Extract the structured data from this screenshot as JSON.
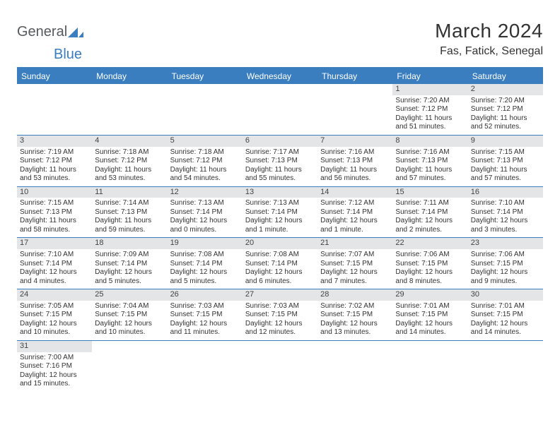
{
  "logo": {
    "text1": "General",
    "text2": "Blue",
    "shape_color": "#3a7ebf"
  },
  "header": {
    "month_title": "March 2024",
    "location": "Fas, Fatick, Senegal"
  },
  "styling": {
    "accent_color": "#3a7ebf",
    "header_bg": "#3a7ebf",
    "header_text_color": "#ffffff",
    "daynum_bg": "#e4e5e6",
    "body_text_color": "#333333",
    "page_bg": "#ffffff",
    "month_title_fontsize": 28,
    "location_fontsize": 16,
    "weekday_fontsize": 12,
    "detail_fontsize": 10,
    "columns": 7
  },
  "weekdays": [
    "Sunday",
    "Monday",
    "Tuesday",
    "Wednesday",
    "Thursday",
    "Friday",
    "Saturday"
  ],
  "leading_blanks": 5,
  "days": [
    {
      "n": "1",
      "sunrise": "Sunrise: 7:20 AM",
      "sunset": "Sunset: 7:12 PM",
      "daylight": "Daylight: 11 hours and 51 minutes."
    },
    {
      "n": "2",
      "sunrise": "Sunrise: 7:20 AM",
      "sunset": "Sunset: 7:12 PM",
      "daylight": "Daylight: 11 hours and 52 minutes."
    },
    {
      "n": "3",
      "sunrise": "Sunrise: 7:19 AM",
      "sunset": "Sunset: 7:12 PM",
      "daylight": "Daylight: 11 hours and 53 minutes."
    },
    {
      "n": "4",
      "sunrise": "Sunrise: 7:18 AM",
      "sunset": "Sunset: 7:12 PM",
      "daylight": "Daylight: 11 hours and 53 minutes."
    },
    {
      "n": "5",
      "sunrise": "Sunrise: 7:18 AM",
      "sunset": "Sunset: 7:12 PM",
      "daylight": "Daylight: 11 hours and 54 minutes."
    },
    {
      "n": "6",
      "sunrise": "Sunrise: 7:17 AM",
      "sunset": "Sunset: 7:13 PM",
      "daylight": "Daylight: 11 hours and 55 minutes."
    },
    {
      "n": "7",
      "sunrise": "Sunrise: 7:16 AM",
      "sunset": "Sunset: 7:13 PM",
      "daylight": "Daylight: 11 hours and 56 minutes."
    },
    {
      "n": "8",
      "sunrise": "Sunrise: 7:16 AM",
      "sunset": "Sunset: 7:13 PM",
      "daylight": "Daylight: 11 hours and 57 minutes."
    },
    {
      "n": "9",
      "sunrise": "Sunrise: 7:15 AM",
      "sunset": "Sunset: 7:13 PM",
      "daylight": "Daylight: 11 hours and 57 minutes."
    },
    {
      "n": "10",
      "sunrise": "Sunrise: 7:15 AM",
      "sunset": "Sunset: 7:13 PM",
      "daylight": "Daylight: 11 hours and 58 minutes."
    },
    {
      "n": "11",
      "sunrise": "Sunrise: 7:14 AM",
      "sunset": "Sunset: 7:13 PM",
      "daylight": "Daylight: 11 hours and 59 minutes."
    },
    {
      "n": "12",
      "sunrise": "Sunrise: 7:13 AM",
      "sunset": "Sunset: 7:14 PM",
      "daylight": "Daylight: 12 hours and 0 minutes."
    },
    {
      "n": "13",
      "sunrise": "Sunrise: 7:13 AM",
      "sunset": "Sunset: 7:14 PM",
      "daylight": "Daylight: 12 hours and 1 minute."
    },
    {
      "n": "14",
      "sunrise": "Sunrise: 7:12 AM",
      "sunset": "Sunset: 7:14 PM",
      "daylight": "Daylight: 12 hours and 1 minute."
    },
    {
      "n": "15",
      "sunrise": "Sunrise: 7:11 AM",
      "sunset": "Sunset: 7:14 PM",
      "daylight": "Daylight: 12 hours and 2 minutes."
    },
    {
      "n": "16",
      "sunrise": "Sunrise: 7:10 AM",
      "sunset": "Sunset: 7:14 PM",
      "daylight": "Daylight: 12 hours and 3 minutes."
    },
    {
      "n": "17",
      "sunrise": "Sunrise: 7:10 AM",
      "sunset": "Sunset: 7:14 PM",
      "daylight": "Daylight: 12 hours and 4 minutes."
    },
    {
      "n": "18",
      "sunrise": "Sunrise: 7:09 AM",
      "sunset": "Sunset: 7:14 PM",
      "daylight": "Daylight: 12 hours and 5 minutes."
    },
    {
      "n": "19",
      "sunrise": "Sunrise: 7:08 AM",
      "sunset": "Sunset: 7:14 PM",
      "daylight": "Daylight: 12 hours and 5 minutes."
    },
    {
      "n": "20",
      "sunrise": "Sunrise: 7:08 AM",
      "sunset": "Sunset: 7:14 PM",
      "daylight": "Daylight: 12 hours and 6 minutes."
    },
    {
      "n": "21",
      "sunrise": "Sunrise: 7:07 AM",
      "sunset": "Sunset: 7:15 PM",
      "daylight": "Daylight: 12 hours and 7 minutes."
    },
    {
      "n": "22",
      "sunrise": "Sunrise: 7:06 AM",
      "sunset": "Sunset: 7:15 PM",
      "daylight": "Daylight: 12 hours and 8 minutes."
    },
    {
      "n": "23",
      "sunrise": "Sunrise: 7:06 AM",
      "sunset": "Sunset: 7:15 PM",
      "daylight": "Daylight: 12 hours and 9 minutes."
    },
    {
      "n": "24",
      "sunrise": "Sunrise: 7:05 AM",
      "sunset": "Sunset: 7:15 PM",
      "daylight": "Daylight: 12 hours and 10 minutes."
    },
    {
      "n": "25",
      "sunrise": "Sunrise: 7:04 AM",
      "sunset": "Sunset: 7:15 PM",
      "daylight": "Daylight: 12 hours and 10 minutes."
    },
    {
      "n": "26",
      "sunrise": "Sunrise: 7:03 AM",
      "sunset": "Sunset: 7:15 PM",
      "daylight": "Daylight: 12 hours and 11 minutes."
    },
    {
      "n": "27",
      "sunrise": "Sunrise: 7:03 AM",
      "sunset": "Sunset: 7:15 PM",
      "daylight": "Daylight: 12 hours and 12 minutes."
    },
    {
      "n": "28",
      "sunrise": "Sunrise: 7:02 AM",
      "sunset": "Sunset: 7:15 PM",
      "daylight": "Daylight: 12 hours and 13 minutes."
    },
    {
      "n": "29",
      "sunrise": "Sunrise: 7:01 AM",
      "sunset": "Sunset: 7:15 PM",
      "daylight": "Daylight: 12 hours and 14 minutes."
    },
    {
      "n": "30",
      "sunrise": "Sunrise: 7:01 AM",
      "sunset": "Sunset: 7:15 PM",
      "daylight": "Daylight: 12 hours and 14 minutes."
    },
    {
      "n": "31",
      "sunrise": "Sunrise: 7:00 AM",
      "sunset": "Sunset: 7:16 PM",
      "daylight": "Daylight: 12 hours and 15 minutes."
    }
  ]
}
